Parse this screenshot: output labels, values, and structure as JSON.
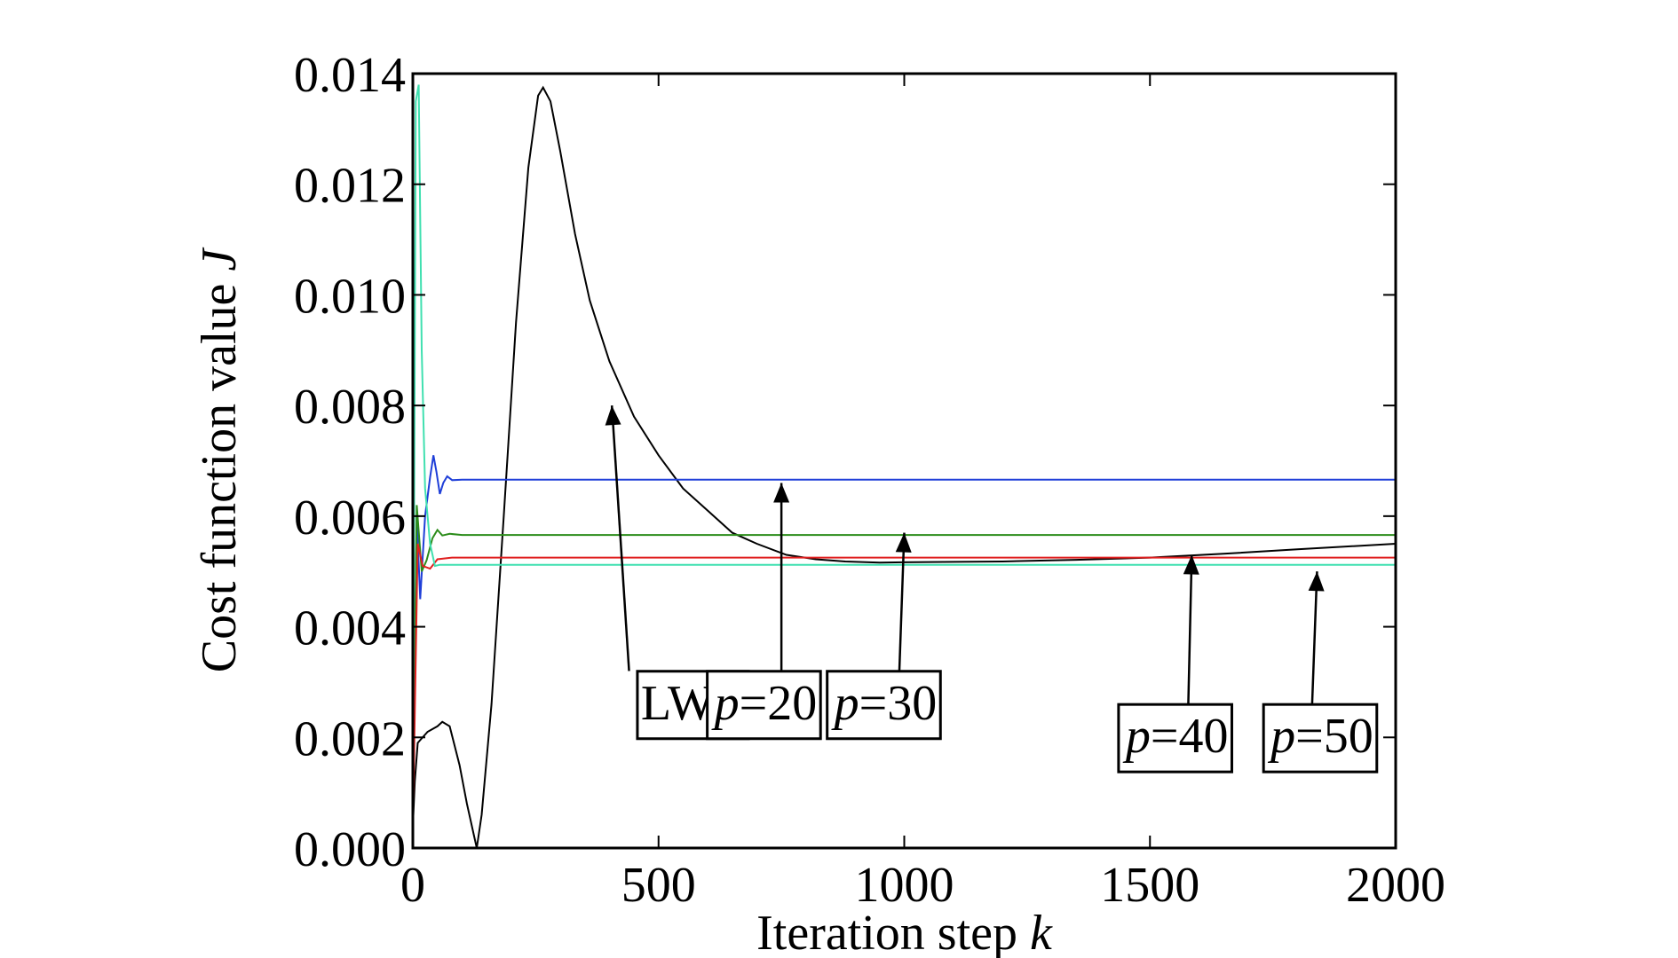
{
  "chart_data": {
    "type": "line",
    "xlabel": "Iteration step ",
    "xlabel_italic": "k",
    "ylabel": "Cost function value ",
    "ylabel_italic": "J",
    "xlim": [
      0,
      2000
    ],
    "ylim": [
      0,
      0.014
    ],
    "xticks": [
      0,
      500,
      1000,
      1500,
      2000
    ],
    "xtick_labels": [
      "0",
      "500",
      "1000",
      "1500",
      "2000"
    ],
    "yticks": [
      0,
      0.002,
      0.004,
      0.006,
      0.008,
      0.01,
      0.012,
      0.014
    ],
    "ytick_labels": [
      "0.000",
      "0.002",
      "0.004",
      "0.006",
      "0.008",
      "0.010",
      "0.012",
      "0.014"
    ],
    "grid": false,
    "series": [
      {
        "color": "#000000",
        "points": [
          [
            0,
            0.0004
          ],
          [
            4,
            0.0012
          ],
          [
            10,
            0.0019
          ],
          [
            30,
            0.0021
          ],
          [
            50,
            0.0022
          ],
          [
            60,
            0.00228
          ],
          [
            75,
            0.0022
          ],
          [
            95,
            0.0015
          ],
          [
            110,
            0.0008
          ],
          [
            125,
            0.0002
          ],
          [
            130,
            0.0
          ],
          [
            140,
            0.0006
          ],
          [
            160,
            0.0026
          ],
          [
            185,
            0.006
          ],
          [
            210,
            0.0095
          ],
          [
            235,
            0.0123
          ],
          [
            255,
            0.0136
          ],
          [
            265,
            0.01375
          ],
          [
            280,
            0.0135
          ],
          [
            300,
            0.0126
          ],
          [
            330,
            0.0111
          ],
          [
            360,
            0.0099
          ],
          [
            400,
            0.0088
          ],
          [
            450,
            0.0078
          ],
          [
            500,
            0.0071
          ],
          [
            550,
            0.0065
          ],
          [
            600,
            0.0061
          ],
          [
            650,
            0.0057
          ],
          [
            700,
            0.0055
          ],
          [
            760,
            0.0053
          ],
          [
            820,
            0.00522
          ],
          [
            880,
            0.00518
          ],
          [
            950,
            0.00516
          ],
          [
            1050,
            0.00517
          ],
          [
            1200,
            0.00518
          ],
          [
            1350,
            0.00521
          ],
          [
            1500,
            0.00525
          ],
          [
            1650,
            0.00532
          ],
          [
            1800,
            0.0054
          ],
          [
            2000,
            0.0055
          ]
        ]
      },
      {
        "color": "#1f3fd8",
        "points": [
          [
            0,
            0.0005
          ],
          [
            8,
            0.006
          ],
          [
            15,
            0.0045
          ],
          [
            25,
            0.006
          ],
          [
            35,
            0.0067
          ],
          [
            42,
            0.0071
          ],
          [
            48,
            0.0068
          ],
          [
            55,
            0.0064
          ],
          [
            62,
            0.0066
          ],
          [
            70,
            0.00672
          ],
          [
            80,
            0.00665
          ],
          [
            100,
            0.00666
          ],
          [
            2000,
            0.00666
          ]
        ]
      },
      {
        "color": "#2b8c1a",
        "points": [
          [
            0,
            0.0005
          ],
          [
            8,
            0.0062
          ],
          [
            18,
            0.005
          ],
          [
            28,
            0.0052
          ],
          [
            40,
            0.0056
          ],
          [
            50,
            0.00575
          ],
          [
            60,
            0.00565
          ],
          [
            75,
            0.00568
          ],
          [
            100,
            0.00566
          ],
          [
            2000,
            0.00566
          ]
        ]
      },
      {
        "color": "#e02020",
        "points": [
          [
            0,
            0.0004
          ],
          [
            10,
            0.0055
          ],
          [
            20,
            0.0051
          ],
          [
            35,
            0.00505
          ],
          [
            50,
            0.00522
          ],
          [
            80,
            0.00525
          ],
          [
            2000,
            0.00525
          ]
        ]
      },
      {
        "color": "#40e0b0",
        "points": [
          [
            0,
            0.0003
          ],
          [
            6,
            0.0135
          ],
          [
            12,
            0.0138
          ],
          [
            18,
            0.009
          ],
          [
            25,
            0.0065
          ],
          [
            35,
            0.0055
          ],
          [
            45,
            0.0051
          ],
          [
            55,
            0.00512
          ],
          [
            70,
            0.00512
          ],
          [
            2000,
            0.00512
          ]
        ]
      }
    ],
    "annotations": [
      {
        "label": "LWL",
        "italic": "",
        "rest": "LWL",
        "arrow_to": [
          405,
          0.008
        ],
        "arrow_from": [
          440,
          0.0032
        ],
        "box_at": [
          570,
          0.00265
        ]
      },
      {
        "label": "p=20",
        "italic": "p",
        "rest": "=20",
        "arrow_to": [
          750,
          0.0066
        ],
        "arrow_from": [
          750,
          0.0032
        ],
        "box_at": [
          718,
          0.00265
        ]
      },
      {
        "label": "p=30",
        "italic": "p",
        "rest": "=30",
        "arrow_to": [
          1000,
          0.0057
        ],
        "arrow_from": [
          990,
          0.0032
        ],
        "box_at": [
          962,
          0.00265
        ]
      },
      {
        "label": "p=40",
        "italic": "p",
        "rest": "=40",
        "arrow_to": [
          1585,
          0.0053
        ],
        "arrow_from": [
          1578,
          0.0026
        ],
        "box_at": [
          1555,
          0.00205
        ]
      },
      {
        "label": "p=50",
        "italic": "p",
        "rest": "=50",
        "arrow_to": [
          1840,
          0.005
        ],
        "arrow_from": [
          1830,
          0.0026
        ],
        "box_at": [
          1850,
          0.00205
        ]
      }
    ]
  }
}
